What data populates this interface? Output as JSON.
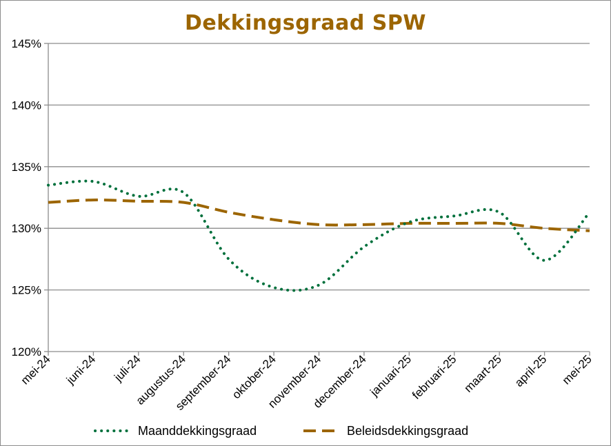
{
  "chart_data": {
    "type": "line",
    "title": "Dekkingsgraad  SPW",
    "xlabel": "",
    "ylabel": "",
    "categories": [
      "mei-24",
      "juni-24",
      "juli-24",
      "augustus-24",
      "september-24",
      "oktober-24",
      "november-24",
      "december-24",
      "januari-25",
      "februari-25",
      "maart-25",
      "april-25",
      "mei-25"
    ],
    "y_ticks": [
      "120%",
      "125%",
      "130%",
      "135%",
      "140%",
      "145%"
    ],
    "ylim": [
      120,
      145
    ],
    "grid": true,
    "legend_position": "bottom",
    "series": [
      {
        "name": "Maanddekkingsgraad",
        "color": "#00703c",
        "style": "dotted",
        "values": [
          133.5,
          133.8,
          132.6,
          132.9,
          127.5,
          125.2,
          125.4,
          128.5,
          130.5,
          131.0,
          131.3,
          127.4,
          131.3
        ]
      },
      {
        "name": "Beleidsdekkingsgraad",
        "color": "#9c6500",
        "style": "dashed",
        "values": [
          132.1,
          132.3,
          132.2,
          132.1,
          131.3,
          130.7,
          130.3,
          130.3,
          130.4,
          130.4,
          130.4,
          130.0,
          129.8
        ]
      }
    ]
  }
}
